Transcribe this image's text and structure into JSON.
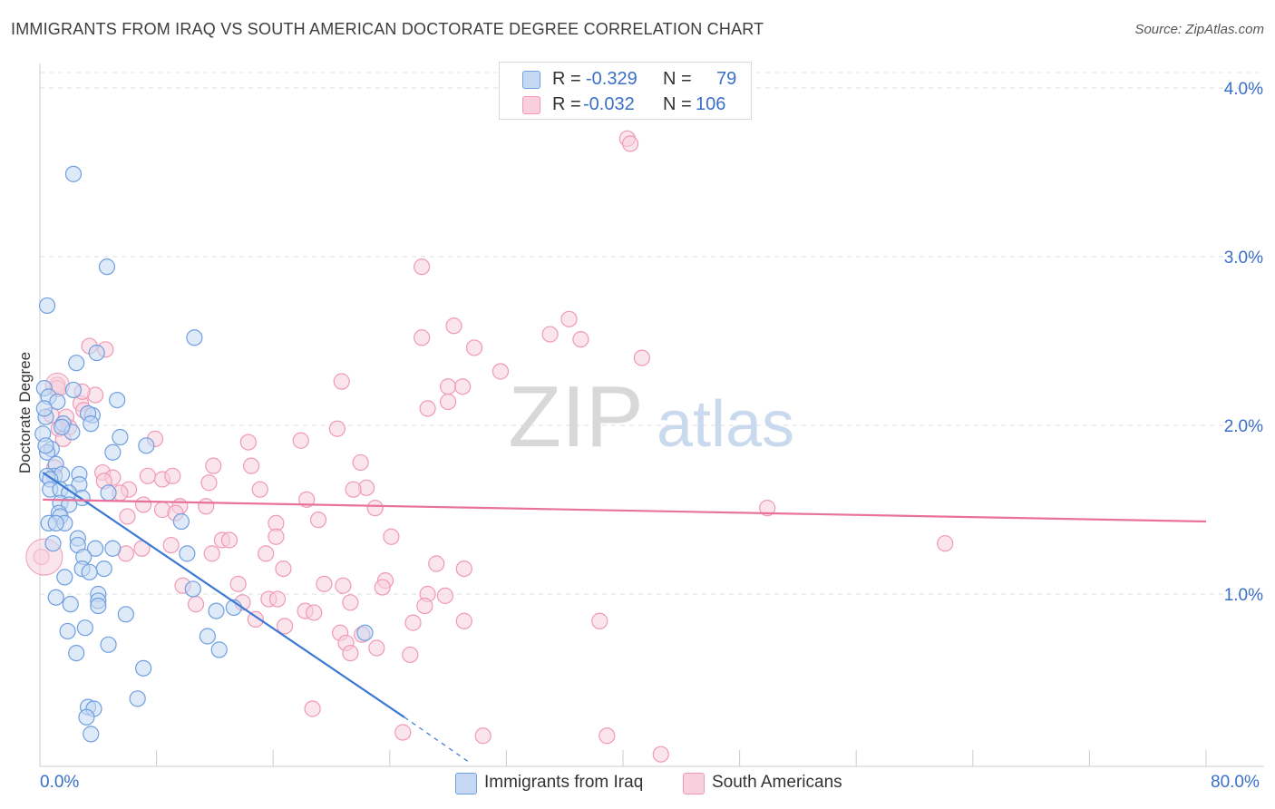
{
  "title": "IMMIGRANTS FROM IRAQ VS SOUTH AMERICAN DOCTORATE DEGREE CORRELATION CHART",
  "source": "Source: ZipAtlas.com",
  "watermark": {
    "zip": "ZIP",
    "atlas": "atlas"
  },
  "legend": {
    "rows": [
      {
        "r_label": "R =",
        "r_value": "-0.329",
        "n_label": "N =",
        "n_value": "79",
        "color": "#6f9fe0"
      },
      {
        "r_label": "R =",
        "r_value": "-0.032",
        "n_label": "N =",
        "n_value": "106",
        "color": "#f099b6"
      }
    ]
  },
  "series_labels": {
    "iraq": "Immigrants from Iraq",
    "south": "South Americans"
  },
  "x_axis_labels": {
    "min": "0.0%",
    "max": "80.0%"
  },
  "chart_data": {
    "type": "scatter",
    "title": "IMMIGRANTS FROM IRAQ VS SOUTH AMERICAN DOCTORATE DEGREE CORRELATION CHART",
    "xlabel": "",
    "ylabel": "Doctorate Degree",
    "xlim": [
      0,
      80
    ],
    "ylim": [
      0,
      4.2
    ],
    "y_ticks": [
      {
        "value": 1.0,
        "label": "1.0%"
      },
      {
        "value": 2.0,
        "label": "2.0%"
      },
      {
        "value": 3.0,
        "label": "3.0%"
      },
      {
        "value": 4.0,
        "label": "4.0%"
      }
    ],
    "x_ticks": [
      0,
      8,
      16,
      24,
      32,
      40,
      48,
      56,
      64,
      72,
      80
    ],
    "grid": true,
    "series": [
      {
        "name": "Immigrants from Iraq",
        "color": "#6f9fe0",
        "fill": "#c5d8f3",
        "line_color": "#3a78d4",
        "trend": {
          "x0": 0.2,
          "y0": 1.72,
          "x1": 25,
          "y1": 0.27,
          "dash_x1": 29.5,
          "dash_y1": 0.0
        },
        "points": [
          [
            2.3,
            3.49
          ],
          [
            4.6,
            2.94
          ],
          [
            0.5,
            2.71
          ],
          [
            10.6,
            2.52
          ],
          [
            3.9,
            2.43
          ],
          [
            2.5,
            2.37
          ],
          [
            0.3,
            2.22
          ],
          [
            0.6,
            2.17
          ],
          [
            1.2,
            2.14
          ],
          [
            3.6,
            2.06
          ],
          [
            5.3,
            2.15
          ],
          [
            2.3,
            2.21
          ],
          [
            3.3,
            2.07
          ],
          [
            0.4,
            2.05
          ],
          [
            1.6,
            2.01
          ],
          [
            3.5,
            2.01
          ],
          [
            2.2,
            1.96
          ],
          [
            1.5,
            1.99
          ],
          [
            5.5,
            1.93
          ],
          [
            7.3,
            1.88
          ],
          [
            0.8,
            1.86
          ],
          [
            0.5,
            1.84
          ],
          [
            5.0,
            1.84
          ],
          [
            1.1,
            1.77
          ],
          [
            1.0,
            1.7
          ],
          [
            1.5,
            1.71
          ],
          [
            0.5,
            1.7
          ],
          [
            0.7,
            1.68
          ],
          [
            2.7,
            1.71
          ],
          [
            2.7,
            1.65
          ],
          [
            0.7,
            1.62
          ],
          [
            1.4,
            1.62
          ],
          [
            2.0,
            1.6
          ],
          [
            4.7,
            1.6
          ],
          [
            2.9,
            1.57
          ],
          [
            1.4,
            1.54
          ],
          [
            2.0,
            1.53
          ],
          [
            1.3,
            1.48
          ],
          [
            1.4,
            1.46
          ],
          [
            1.7,
            1.42
          ],
          [
            0.6,
            1.42
          ],
          [
            1.1,
            1.42
          ],
          [
            9.7,
            1.43
          ],
          [
            2.6,
            1.33
          ],
          [
            0.9,
            1.3
          ],
          [
            2.6,
            1.29
          ],
          [
            3.8,
            1.27
          ],
          [
            5.0,
            1.27
          ],
          [
            10.1,
            1.24
          ],
          [
            3.0,
            1.22
          ],
          [
            2.9,
            1.15
          ],
          [
            4.4,
            1.15
          ],
          [
            3.4,
            1.13
          ],
          [
            1.7,
            1.1
          ],
          [
            10.5,
            1.03
          ],
          [
            1.1,
            0.98
          ],
          [
            2.1,
            0.94
          ],
          [
            4.0,
            1.0
          ],
          [
            4.0,
            0.96
          ],
          [
            4.0,
            0.93
          ],
          [
            5.9,
            0.88
          ],
          [
            12.1,
            0.9
          ],
          [
            13.3,
            0.92
          ],
          [
            1.9,
            0.78
          ],
          [
            3.1,
            0.8
          ],
          [
            11.5,
            0.75
          ],
          [
            22.3,
            0.77
          ],
          [
            4.7,
            0.7
          ],
          [
            12.3,
            0.67
          ],
          [
            2.5,
            0.65
          ],
          [
            7.1,
            0.56
          ],
          [
            6.7,
            0.38
          ],
          [
            3.3,
            0.33
          ],
          [
            3.7,
            0.32
          ],
          [
            3.2,
            0.27
          ],
          [
            3.5,
            0.17
          ],
          [
            0.3,
            2.1
          ],
          [
            0.2,
            1.95
          ],
          [
            0.4,
            1.88
          ]
        ]
      },
      {
        "name": "South Americans",
        "color": "#f099b6",
        "fill": "#f8cfdd",
        "line_color": "#e8729a",
        "trend": {
          "x0": 0.2,
          "y0": 1.56,
          "x1": 80,
          "y1": 1.43
        },
        "points": [
          [
            40.3,
            3.7
          ],
          [
            40.5,
            3.67
          ],
          [
            26.2,
            2.94
          ],
          [
            36.3,
            2.63
          ],
          [
            28.4,
            2.59
          ],
          [
            35.0,
            2.54
          ],
          [
            26.2,
            2.52
          ],
          [
            37.1,
            2.51
          ],
          [
            3.4,
            2.47
          ],
          [
            4.5,
            2.45
          ],
          [
            29.8,
            2.46
          ],
          [
            41.3,
            2.4
          ],
          [
            31.6,
            2.32
          ],
          [
            20.7,
            2.26
          ],
          [
            28.0,
            2.23
          ],
          [
            29.0,
            2.23
          ],
          [
            1.2,
            2.24
          ],
          [
            1.2,
            2.22
          ],
          [
            3.8,
            2.18
          ],
          [
            2.8,
            2.13
          ],
          [
            28.0,
            2.14
          ],
          [
            26.6,
            2.1
          ],
          [
            3.0,
            2.09
          ],
          [
            0.8,
            2.06
          ],
          [
            20.4,
            1.98
          ],
          [
            1.3,
            1.98
          ],
          [
            2.0,
            1.99
          ],
          [
            7.9,
            1.92
          ],
          [
            1.6,
            1.92
          ],
          [
            14.3,
            1.9
          ],
          [
            17.9,
            1.91
          ],
          [
            22.0,
            1.78
          ],
          [
            14.5,
            1.76
          ],
          [
            11.9,
            1.76
          ],
          [
            4.3,
            1.72
          ],
          [
            1.0,
            1.75
          ],
          [
            5.0,
            1.69
          ],
          [
            7.4,
            1.7
          ],
          [
            8.4,
            1.68
          ],
          [
            9.1,
            1.7
          ],
          [
            11.6,
            1.66
          ],
          [
            4.4,
            1.67
          ],
          [
            22.4,
            1.63
          ],
          [
            15.1,
            1.62
          ],
          [
            6.1,
            1.62
          ],
          [
            5.5,
            1.6
          ],
          [
            21.5,
            1.62
          ],
          [
            18.3,
            1.56
          ],
          [
            11.4,
            1.52
          ],
          [
            9.6,
            1.52
          ],
          [
            7.1,
            1.53
          ],
          [
            23.0,
            1.51
          ],
          [
            49.9,
            1.51
          ],
          [
            8.4,
            1.5
          ],
          [
            6.0,
            1.46
          ],
          [
            16.2,
            1.42
          ],
          [
            24.1,
            1.34
          ],
          [
            16.2,
            1.34
          ],
          [
            12.5,
            1.32
          ],
          [
            13.0,
            1.32
          ],
          [
            62.1,
            1.3
          ],
          [
            7.0,
            1.27
          ],
          [
            9.0,
            1.29
          ],
          [
            11.8,
            1.24
          ],
          [
            5.9,
            1.24
          ],
          [
            0.1,
            1.22
          ],
          [
            27.2,
            1.18
          ],
          [
            29.1,
            1.15
          ],
          [
            16.7,
            1.15
          ],
          [
            13.6,
            1.06
          ],
          [
            19.5,
            1.06
          ],
          [
            20.8,
            1.05
          ],
          [
            23.7,
            1.08
          ],
          [
            23.5,
            1.04
          ],
          [
            9.8,
            1.05
          ],
          [
            26.6,
            1.0
          ],
          [
            27.8,
            0.99
          ],
          [
            15.7,
            0.97
          ],
          [
            16.3,
            0.97
          ],
          [
            10.7,
            0.94
          ],
          [
            13.9,
            0.95
          ],
          [
            21.3,
            0.95
          ],
          [
            26.4,
            0.93
          ],
          [
            18.2,
            0.9
          ],
          [
            18.8,
            0.89
          ],
          [
            14.8,
            0.85
          ],
          [
            16.8,
            0.81
          ],
          [
            25.6,
            0.83
          ],
          [
            29.1,
            0.84
          ],
          [
            38.4,
            0.84
          ],
          [
            20.6,
            0.77
          ],
          [
            22.1,
            0.76
          ],
          [
            21.0,
            0.71
          ],
          [
            23.1,
            0.68
          ],
          [
            25.4,
            0.64
          ],
          [
            21.3,
            0.65
          ],
          [
            18.7,
            0.32
          ],
          [
            24.9,
            0.18
          ],
          [
            30.4,
            0.16
          ],
          [
            38.9,
            0.16
          ],
          [
            42.6,
            0.05
          ],
          [
            2.9,
            2.2
          ],
          [
            1.8,
            2.05
          ],
          [
            9.3,
            1.48
          ],
          [
            15.5,
            1.24
          ],
          [
            19.1,
            1.44
          ]
        ]
      }
    ]
  }
}
